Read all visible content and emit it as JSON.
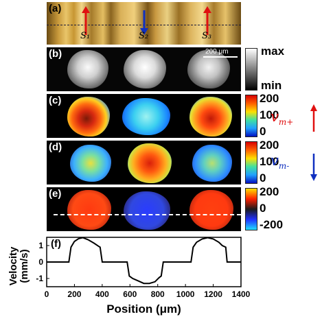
{
  "panels": {
    "a": {
      "label": "(a)",
      "stripes": [
        "S₁",
        "S₂",
        "S₃"
      ]
    },
    "b": {
      "label": "(b)",
      "scalebar": "200 μm",
      "colorbar_max": "max",
      "colorbar_min": "min"
    },
    "c": {
      "label": "(c)",
      "ticks": [
        "200",
        "100",
        "0"
      ]
    },
    "d": {
      "label": "(d)",
      "ticks": [
        "200",
        "100",
        "0"
      ]
    },
    "e": {
      "label": "(e)",
      "ticks": [
        "200",
        "0",
        "-200"
      ]
    },
    "f": {
      "label": "(f)"
    }
  },
  "symbols": {
    "vm_plus": {
      "base": "v",
      "sub": "m+"
    },
    "vm_minus": {
      "base": "v",
      "sub": "m-"
    }
  },
  "colors": {
    "arrow_up": "#e01010",
    "arrow_down": "#1030c0",
    "hot": "#ff3a10",
    "cold": "#1a3cff"
  },
  "chart_data": {
    "type": "line",
    "xlabel": "Position (μm)",
    "ylabel": "Velocity (mm/s)",
    "xlim": [
      0,
      1400
    ],
    "ylim": [
      -1.5,
      1.5
    ],
    "xticks": [
      0,
      200,
      400,
      600,
      800,
      1000,
      1200,
      1400
    ],
    "yticks": [
      -1,
      0,
      1
    ],
    "x": [
      0,
      160,
      175,
      200,
      230,
      260,
      300,
      340,
      375,
      385,
      400,
      580,
      595,
      620,
      660,
      700,
      740,
      780,
      810,
      825,
      840,
      1040,
      1055,
      1080,
      1120,
      1160,
      1200,
      1240,
      1265,
      1290,
      1300,
      1400
    ],
    "y": [
      0,
      0,
      0.9,
      1.25,
      1.42,
      1.48,
      1.35,
      1.15,
      0.95,
      0.9,
      0,
      0,
      -0.85,
      -1.0,
      -1.15,
      -1.3,
      -1.3,
      -1.2,
      -0.95,
      -0.85,
      0,
      0,
      0.9,
      1.2,
      1.4,
      1.48,
      1.4,
      1.2,
      1.0,
      0.9,
      0,
      0
    ]
  }
}
